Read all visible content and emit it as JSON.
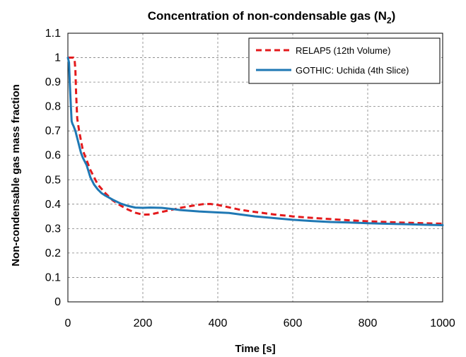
{
  "chart_data": {
    "type": "line",
    "title": "Concentration of non-condensable gas (N",
    "title_subscript": "2",
    "title_suffix": ")",
    "xlabel": "Time [s]",
    "ylabel": "Non-condensable gas mass fraction",
    "xlim": [
      0,
      1000
    ],
    "ylim": [
      0,
      1.1
    ],
    "xticks": [
      0,
      200,
      400,
      600,
      800,
      1000
    ],
    "yticks": [
      0,
      0.1,
      0.2,
      0.3,
      0.4,
      0.5,
      0.6,
      0.7,
      0.8,
      0.9,
      1,
      1.1
    ],
    "grid": true,
    "legend_position": "top-right",
    "series": [
      {
        "name": "RELAP5 (12th Volume)",
        "color": "#e31a1c",
        "style": "dashed",
        "x": [
          0,
          5,
          10,
          15,
          18,
          20,
          22,
          25,
          30,
          35,
          40,
          50,
          60,
          70,
          80,
          100,
          120,
          140,
          160,
          180,
          200,
          220,
          250,
          280,
          300,
          330,
          360,
          380,
          400,
          430,
          460,
          500,
          550,
          600,
          650,
          700,
          750,
          800,
          850,
          900,
          950,
          1000
        ],
        "y": [
          1.0,
          1.0,
          1.0,
          1.0,
          0.99,
          0.95,
          0.85,
          0.75,
          0.7,
          0.66,
          0.62,
          0.58,
          0.54,
          0.51,
          0.48,
          0.445,
          0.415,
          0.395,
          0.378,
          0.365,
          0.357,
          0.358,
          0.368,
          0.378,
          0.385,
          0.393,
          0.4,
          0.401,
          0.397,
          0.387,
          0.377,
          0.368,
          0.358,
          0.35,
          0.344,
          0.339,
          0.334,
          0.33,
          0.327,
          0.324,
          0.322,
          0.32
        ]
      },
      {
        "name": "GOTHIC: Uchida (4th Slice)",
        "color": "#1f78b4",
        "style": "solid",
        "x": [
          0,
          3,
          5,
          8,
          10,
          12,
          15,
          20,
          25,
          30,
          35,
          40,
          50,
          60,
          70,
          80,
          90,
          100,
          120,
          140,
          160,
          180,
          200,
          220,
          250,
          280,
          300,
          350,
          400,
          430,
          460,
          500,
          550,
          600,
          650,
          700,
          750,
          800,
          850,
          900,
          950,
          1000
        ],
        "y": [
          1.0,
          0.98,
          0.9,
          0.8,
          0.74,
          0.73,
          0.72,
          0.7,
          0.67,
          0.64,
          0.61,
          0.59,
          0.56,
          0.51,
          0.48,
          0.46,
          0.445,
          0.435,
          0.418,
          0.403,
          0.393,
          0.386,
          0.385,
          0.386,
          0.385,
          0.38,
          0.376,
          0.37,
          0.366,
          0.364,
          0.358,
          0.35,
          0.343,
          0.336,
          0.331,
          0.327,
          0.325,
          0.322,
          0.32,
          0.318,
          0.316,
          0.314
        ]
      }
    ]
  }
}
